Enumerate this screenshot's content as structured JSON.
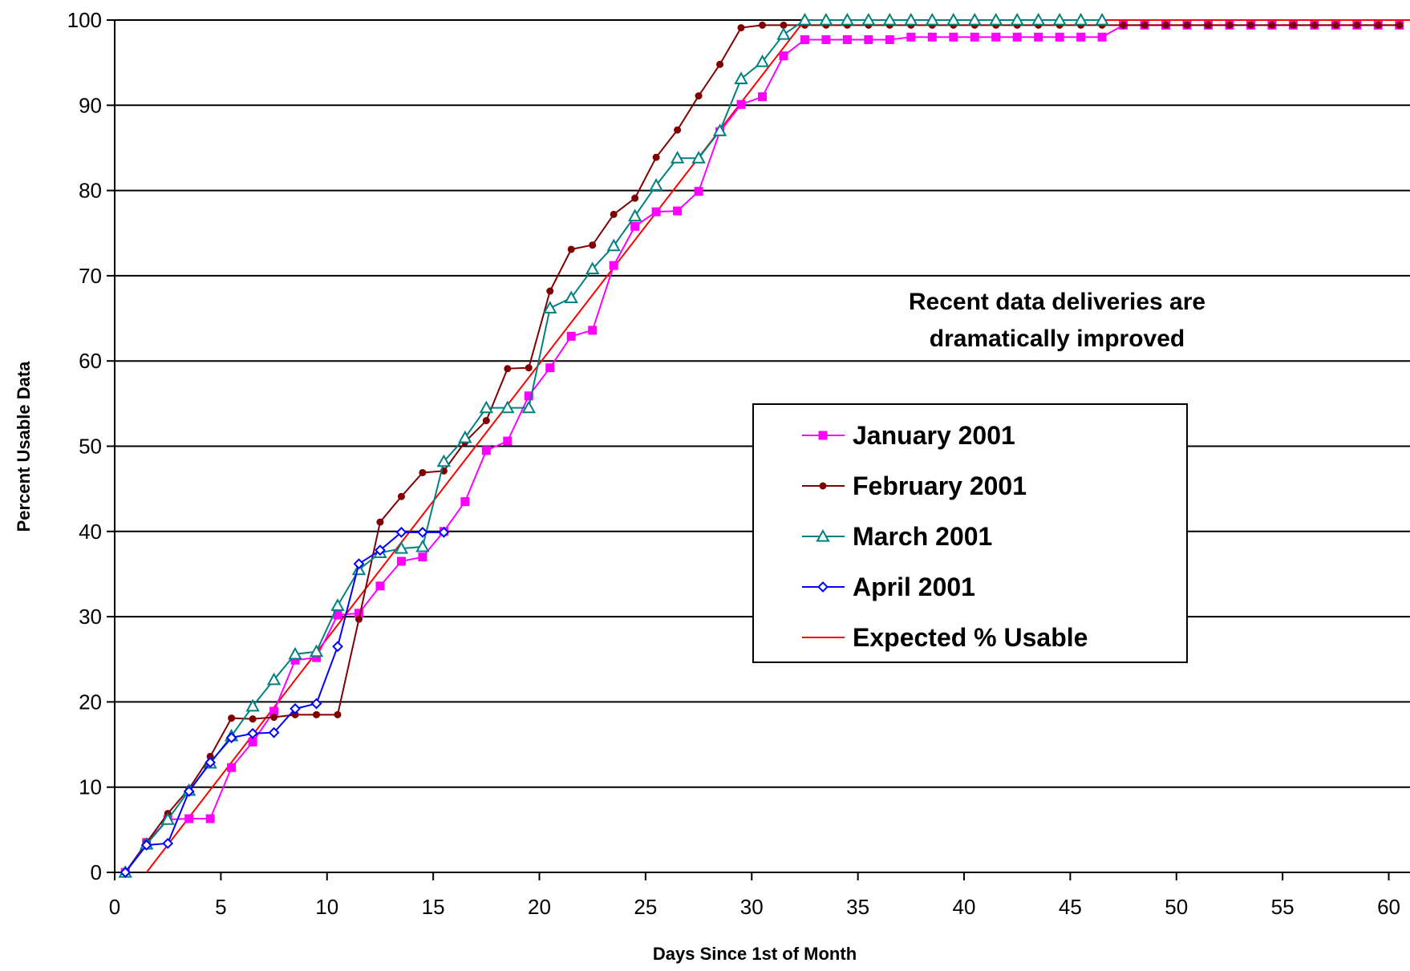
{
  "chart_data": {
    "type": "line",
    "title": "",
    "xlabel": "Days Since 1st of Month",
    "ylabel": "Percent Usable Data",
    "xlim": [
      0,
      61
    ],
    "ylim": [
      0,
      100
    ],
    "xticks": [
      0,
      5,
      10,
      15,
      20,
      25,
      30,
      35,
      40,
      45,
      50,
      55,
      60
    ],
    "yticks": [
      0,
      10,
      20,
      30,
      40,
      50,
      60,
      70,
      80,
      90,
      100
    ],
    "grid": "horizontal",
    "legend_position": "center-right",
    "annotation": [
      "Recent data deliveries are",
      "dramatically improved"
    ],
    "series": [
      {
        "name": "January 2001",
        "color": "#ff00ff",
        "marker": "square",
        "points": [
          [
            0.5,
            0
          ],
          [
            1.5,
            3.5
          ],
          [
            2.5,
            6.2
          ],
          [
            3.5,
            6.3
          ],
          [
            4.5,
            6.3
          ],
          [
            5.5,
            12.3
          ],
          [
            6.5,
            15.3
          ],
          [
            7.5,
            18.9
          ],
          [
            8.5,
            24.9
          ],
          [
            9.5,
            25.2
          ],
          [
            10.5,
            30.2
          ],
          [
            11.5,
            30.4
          ],
          [
            12.5,
            33.6
          ],
          [
            13.5,
            36.5
          ],
          [
            14.5,
            37.0
          ],
          [
            15.5,
            40.0
          ],
          [
            16.5,
            43.5
          ],
          [
            17.5,
            49.5
          ],
          [
            18.5,
            50.6
          ],
          [
            19.5,
            55.9
          ],
          [
            20.5,
            59.2
          ],
          [
            21.5,
            62.9
          ],
          [
            22.5,
            63.6
          ],
          [
            23.5,
            71.2
          ],
          [
            24.5,
            75.8
          ],
          [
            25.5,
            77.5
          ],
          [
            26.5,
            77.6
          ],
          [
            27.5,
            79.9
          ],
          [
            28.5,
            86.9
          ],
          [
            29.5,
            90.1
          ],
          [
            30.5,
            91.0
          ],
          [
            31.5,
            95.8
          ],
          [
            32.5,
            97.7
          ],
          [
            33.5,
            97.7
          ],
          [
            34.5,
            97.7
          ],
          [
            35.5,
            97.7
          ],
          [
            36.5,
            97.7
          ],
          [
            37.5,
            98.0
          ],
          [
            38.5,
            98.0
          ],
          [
            39.5,
            98.0
          ],
          [
            40.5,
            98.0
          ],
          [
            41.5,
            98.0
          ],
          [
            42.5,
            98.0
          ],
          [
            43.5,
            98.0
          ],
          [
            44.5,
            98.0
          ],
          [
            45.5,
            98.0
          ],
          [
            46.5,
            98.0
          ],
          [
            47.5,
            99.4
          ],
          [
            48.5,
            99.4
          ],
          [
            49.5,
            99.4
          ],
          [
            50.5,
            99.4
          ],
          [
            51.5,
            99.4
          ],
          [
            52.5,
            99.4
          ],
          [
            53.5,
            99.4
          ],
          [
            54.5,
            99.4
          ],
          [
            55.5,
            99.4
          ],
          [
            56.5,
            99.4
          ],
          [
            57.5,
            99.4
          ],
          [
            58.5,
            99.4
          ],
          [
            59.5,
            99.4
          ],
          [
            60.5,
            99.4
          ]
        ]
      },
      {
        "name": "February 2001",
        "color": "#800000",
        "marker": "circle",
        "points": [
          [
            0.5,
            0
          ],
          [
            1.5,
            3.5
          ],
          [
            2.5,
            6.9
          ],
          [
            3.5,
            9.8
          ],
          [
            4.5,
            13.6
          ],
          [
            5.5,
            18.1
          ],
          [
            6.5,
            18.0
          ],
          [
            7.5,
            18.2
          ],
          [
            8.5,
            18.5
          ],
          [
            9.5,
            18.5
          ],
          [
            10.5,
            18.5
          ],
          [
            11.5,
            29.7
          ],
          [
            12.5,
            41.1
          ],
          [
            13.5,
            44.1
          ],
          [
            14.5,
            46.9
          ],
          [
            15.5,
            47.1
          ],
          [
            16.5,
            50.5
          ],
          [
            17.5,
            53.0
          ],
          [
            18.5,
            59.1
          ],
          [
            19.5,
            59.2
          ],
          [
            20.5,
            68.2
          ],
          [
            21.5,
            73.1
          ],
          [
            22.5,
            73.6
          ],
          [
            23.5,
            77.2
          ],
          [
            24.5,
            79.1
          ],
          [
            25.5,
            83.9
          ],
          [
            26.5,
            87.1
          ],
          [
            27.5,
            91.1
          ],
          [
            28.5,
            94.8
          ],
          [
            29.5,
            99.1
          ],
          [
            30.5,
            99.4
          ],
          [
            31.5,
            99.4
          ],
          [
            32.5,
            99.4
          ],
          [
            33.5,
            99.4
          ],
          [
            34.5,
            99.4
          ],
          [
            35.5,
            99.4
          ],
          [
            36.5,
            99.4
          ],
          [
            37.5,
            99.4
          ],
          [
            38.5,
            99.4
          ],
          [
            39.5,
            99.4
          ],
          [
            40.5,
            99.4
          ],
          [
            41.5,
            99.4
          ],
          [
            42.5,
            99.4
          ],
          [
            43.5,
            99.4
          ],
          [
            44.5,
            99.4
          ],
          [
            45.5,
            99.4
          ],
          [
            46.5,
            99.4
          ],
          [
            47.5,
            99.4
          ],
          [
            48.5,
            99.4
          ],
          [
            49.5,
            99.4
          ],
          [
            50.5,
            99.4
          ],
          [
            51.5,
            99.4
          ],
          [
            52.5,
            99.4
          ],
          [
            53.5,
            99.4
          ],
          [
            54.5,
            99.4
          ],
          [
            55.5,
            99.4
          ],
          [
            56.5,
            99.4
          ],
          [
            57.5,
            99.4
          ],
          [
            58.5,
            99.4
          ],
          [
            59.5,
            99.4
          ],
          [
            60.5,
            99.4
          ]
        ]
      },
      {
        "name": "March 2001",
        "color": "#008080",
        "marker": "triangle",
        "points": [
          [
            0.5,
            0
          ],
          [
            1.5,
            3.3
          ],
          [
            2.5,
            6.2
          ],
          [
            3.5,
            9.6
          ],
          [
            4.5,
            12.8
          ],
          [
            5.5,
            16.0
          ],
          [
            6.5,
            19.5
          ],
          [
            7.5,
            22.6
          ],
          [
            8.5,
            25.6
          ],
          [
            9.5,
            25.9
          ],
          [
            10.5,
            31.3
          ],
          [
            11.5,
            35.5
          ],
          [
            12.5,
            37.5
          ],
          [
            13.5,
            38.0
          ],
          [
            14.5,
            38.2
          ],
          [
            15.5,
            48.2
          ],
          [
            16.5,
            51.0
          ],
          [
            17.5,
            54.5
          ],
          [
            18.5,
            54.5
          ],
          [
            19.5,
            54.5
          ],
          [
            20.5,
            66.2
          ],
          [
            21.5,
            67.4
          ],
          [
            22.5,
            70.8
          ],
          [
            23.5,
            73.5
          ],
          [
            24.5,
            77.0
          ],
          [
            25.5,
            80.6
          ],
          [
            26.5,
            83.8
          ],
          [
            27.5,
            83.8
          ],
          [
            28.5,
            87.0
          ],
          [
            29.5,
            93.1
          ],
          [
            30.5,
            95.1
          ],
          [
            31.5,
            98.3
          ],
          [
            32.5,
            100
          ],
          [
            33.5,
            100
          ],
          [
            34.5,
            100
          ],
          [
            35.5,
            100
          ],
          [
            36.5,
            100
          ],
          [
            37.5,
            100
          ],
          [
            38.5,
            100
          ],
          [
            39.5,
            100
          ],
          [
            40.5,
            100
          ],
          [
            41.5,
            100
          ],
          [
            42.5,
            100
          ],
          [
            43.5,
            100
          ],
          [
            44.5,
            100
          ],
          [
            45.5,
            100
          ],
          [
            46.5,
            100
          ]
        ]
      },
      {
        "name": "April 2001",
        "color": "#0000ff",
        "marker": "diamond",
        "points": [
          [
            0.5,
            0
          ],
          [
            1.5,
            3.2
          ],
          [
            2.5,
            3.4
          ],
          [
            3.5,
            9.5
          ],
          [
            4.5,
            12.9
          ],
          [
            5.5,
            15.8
          ],
          [
            6.5,
            16.3
          ],
          [
            7.5,
            16.4
          ],
          [
            8.5,
            19.2
          ],
          [
            9.5,
            19.8
          ],
          [
            10.5,
            26.5
          ],
          [
            11.5,
            36.2
          ],
          [
            12.5,
            37.8
          ],
          [
            13.5,
            39.9
          ],
          [
            14.5,
            39.9
          ],
          [
            15.5,
            39.9
          ]
        ]
      },
      {
        "name": "Expected % Usable",
        "color": "#ff0000",
        "marker": "none",
        "points": [
          [
            1.5,
            0
          ],
          [
            32.5,
            100
          ],
          [
            61,
            100
          ]
        ]
      }
    ]
  }
}
